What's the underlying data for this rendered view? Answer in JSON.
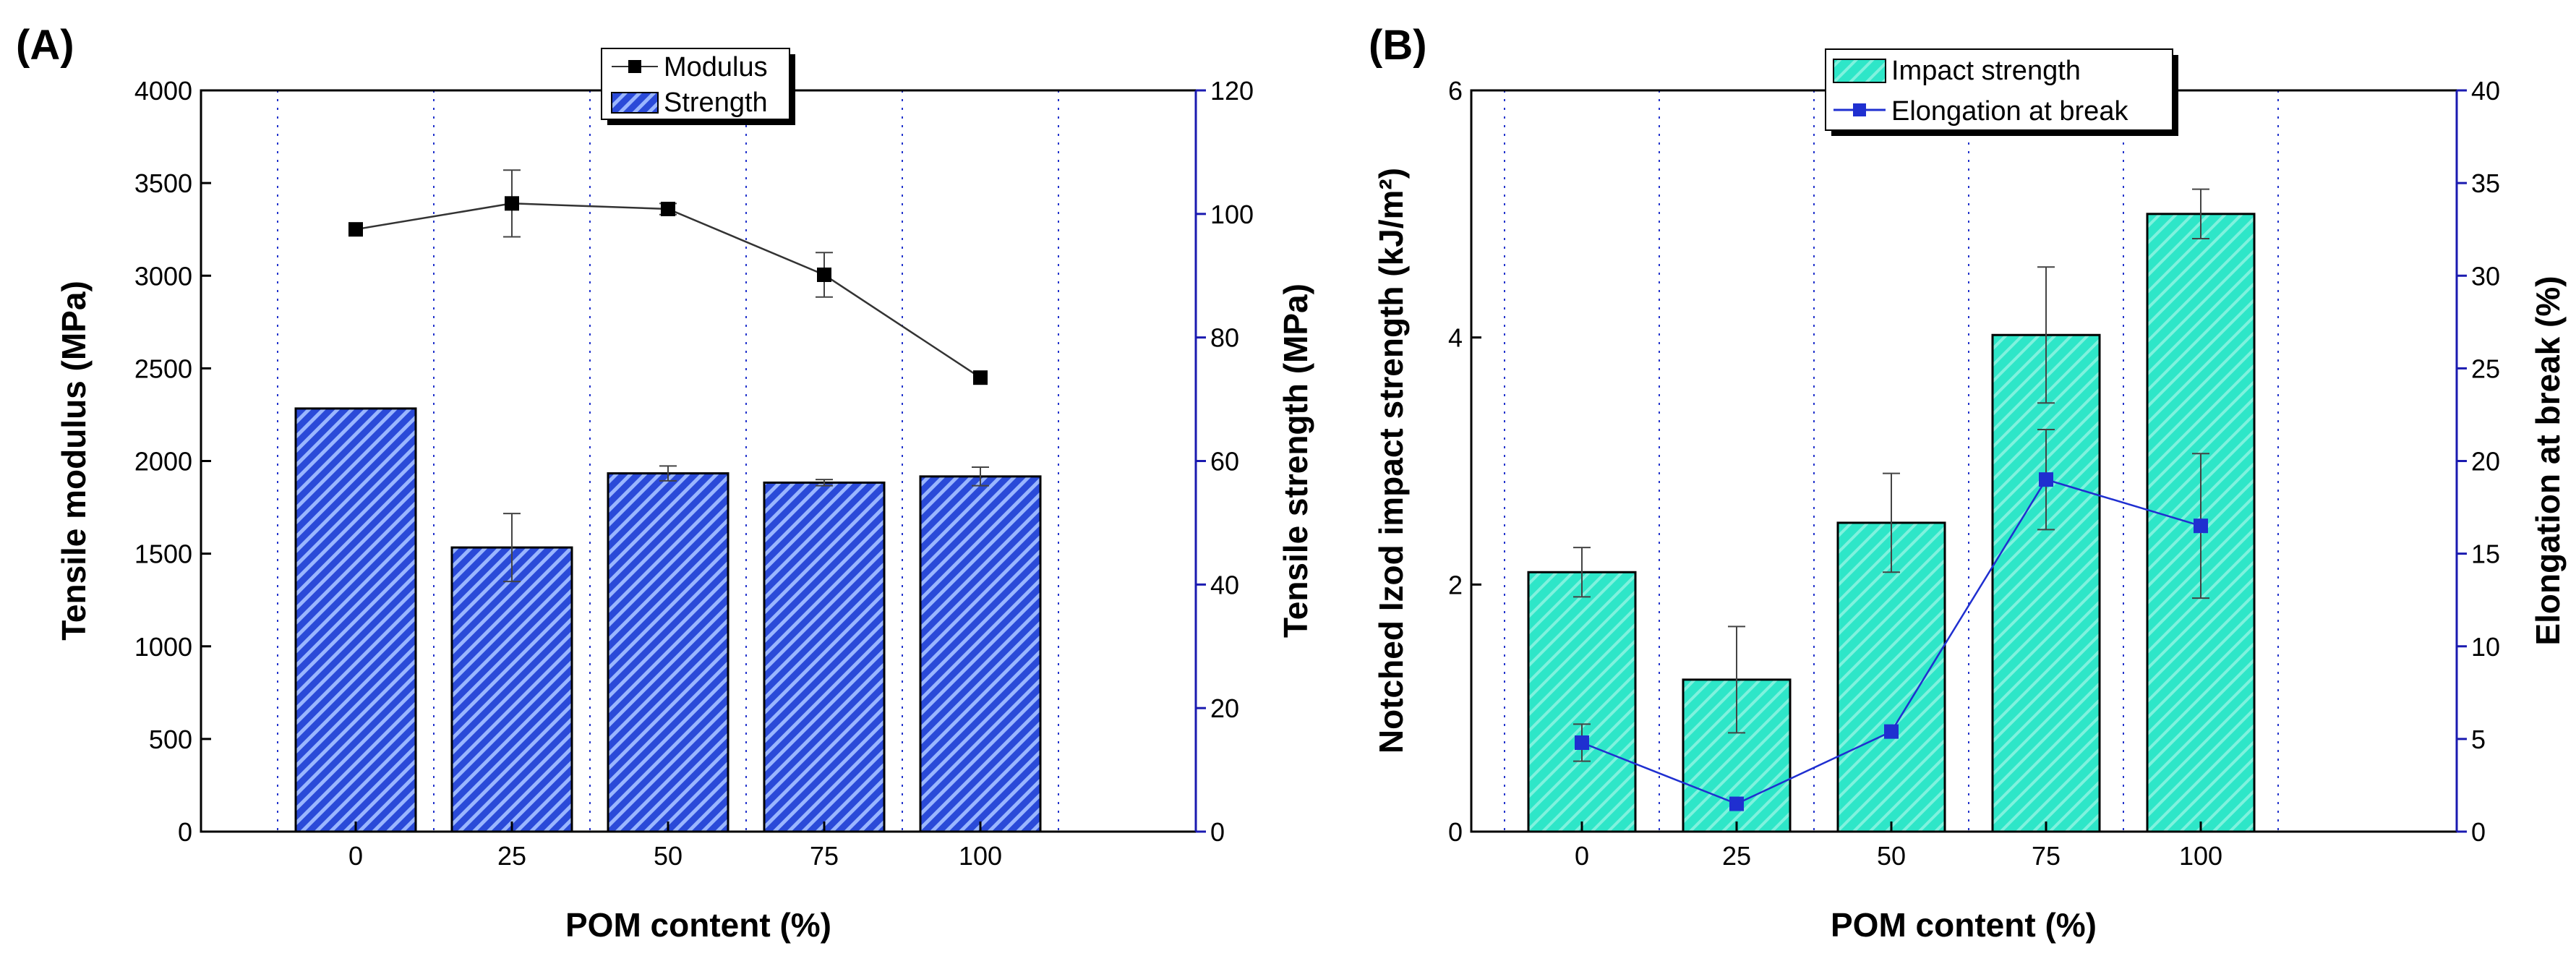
{
  "chart_data": [
    {
      "panel_label": "(A)",
      "type": "bar+line",
      "categories": [
        "0",
        "25",
        "50",
        "75",
        "100"
      ],
      "xlabel": "POM content (%)",
      "ylabel": "Tensile modulus (MPa)",
      "ylabel_right": "Tensile strength (MPa)",
      "ylim": [
        0,
        4000
      ],
      "ylim_right": [
        0,
        120
      ],
      "yticks": [
        "0",
        "500",
        "1000",
        "1500",
        "2000",
        "2500",
        "3000",
        "3500",
        "4000"
      ],
      "yticks_right": [
        "0",
        "20",
        "40",
        "60",
        "80",
        "100",
        "120"
      ],
      "legend": [
        "Modulus",
        "Strength"
      ],
      "series": [
        {
          "name": "Modulus",
          "kind": "line",
          "axis": "left",
          "values": [
            3250,
            3390,
            3360,
            3005,
            2450
          ],
          "errors": [
            0,
            180,
            30,
            120,
            0
          ]
        },
        {
          "name": "Strength",
          "kind": "bar",
          "axis": "right",
          "values": [
            68.5,
            46,
            58,
            56.5,
            57.5
          ],
          "errors": [
            0,
            5.5,
            1.2,
            0.5,
            1.5
          ]
        }
      ]
    },
    {
      "panel_label": "(B)",
      "type": "bar+line",
      "categories": [
        "0",
        "25",
        "50",
        "75",
        "100"
      ],
      "xlabel": "POM content (%)",
      "ylabel": "Notched Izod impact strength (kJ/m²)",
      "ylabel_right": "Elongation at break (%)",
      "ylim": [
        0,
        6
      ],
      "ylim_right": [
        0,
        40
      ],
      "yticks": [
        "0",
        "2",
        "4",
        "6"
      ],
      "yticks_right": [
        "0",
        "5",
        "10",
        "15",
        "20",
        "25",
        "30",
        "35",
        "40"
      ],
      "legend": [
        "Impact strength",
        "Elongation at break"
      ],
      "series": [
        {
          "name": "Impact strength",
          "kind": "bar",
          "axis": "left",
          "values": [
            2.1,
            1.23,
            2.5,
            4.02,
            5.0
          ],
          "errors": [
            0.2,
            0.43,
            0.4,
            0.55,
            0.2
          ]
        },
        {
          "name": "Elongation at break",
          "kind": "line",
          "axis": "right",
          "values": [
            4.8,
            1.5,
            5.4,
            19.0,
            16.5
          ],
          "errors": [
            1.0,
            0,
            0,
            2.7,
            3.9
          ]
        }
      ]
    }
  ],
  "colors": {
    "strength_bar": "#2a4ad8",
    "strength_hatch": "#9ab6ff",
    "impact_bar": "#2ee6c8",
    "impact_hatch": "#7ff2de",
    "elongation_line": "#1f2fd0",
    "modulus_line": "#333333",
    "right_axis": "#1a1ab0",
    "gridline": "#2233cc"
  }
}
